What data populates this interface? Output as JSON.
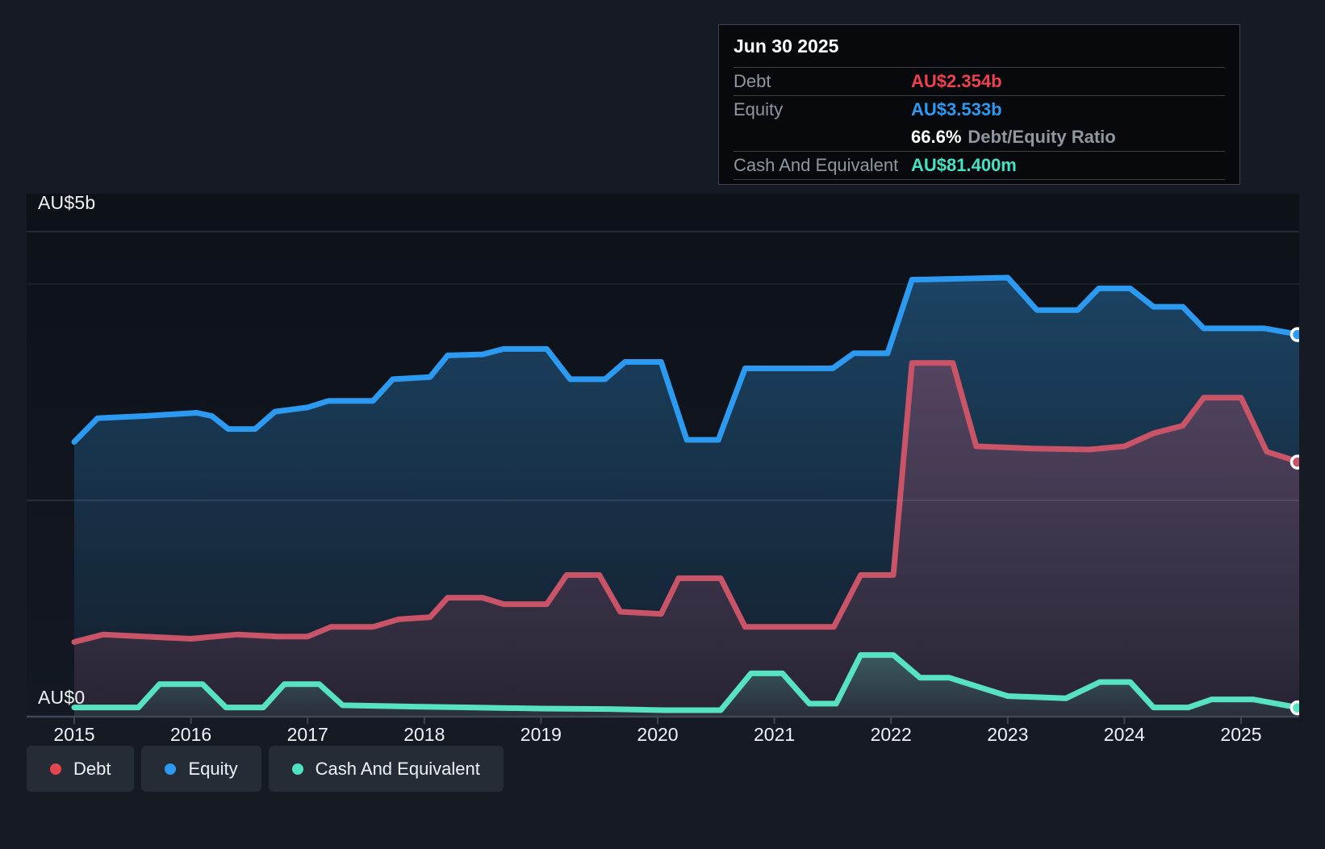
{
  "tooltip": {
    "date": "Jun 30 2025",
    "debt": {
      "label": "Debt",
      "value": "AU$2.354b",
      "color": "#ee4150"
    },
    "equity": {
      "label": "Equity",
      "value": "AU$3.533b",
      "color": "#2b9af0"
    },
    "ratio": {
      "value": "66.6%",
      "label": "Debt/Equity Ratio"
    },
    "cash": {
      "label": "Cash And Equivalent",
      "value": "AU$81.400m",
      "color": "#47e2c1"
    }
  },
  "y_axis": {
    "top_label": "AU$5b",
    "bottom_label": "AU$0"
  },
  "x_axis": {
    "years": [
      "2015",
      "2016",
      "2017",
      "2018",
      "2019",
      "2020",
      "2021",
      "2022",
      "2023",
      "2024",
      "2025"
    ]
  },
  "legend": {
    "items": [
      {
        "label": "Debt",
        "color": "#e4464f"
      },
      {
        "label": "Equity",
        "color": "#2b9af0"
      },
      {
        "label": "Cash And Equivalent",
        "color": "#4fe2c2"
      }
    ]
  },
  "chart_data": {
    "type": "area",
    "unit": "AU$ billions",
    "x_range": [
      2015,
      2025.5
    ],
    "ylim": [
      0,
      5
    ],
    "y_gridlines_b": [
      0,
      2,
      4
    ],
    "y_axis_labels_shown": [
      "AU$5b",
      "AU$0"
    ],
    "x_tick_labels": [
      "2015",
      "2016",
      "2017",
      "2018",
      "2019",
      "2020",
      "2021",
      "2022",
      "2023",
      "2024",
      "2025"
    ],
    "legend_position": "bottom-left",
    "last_point_date": "Jun 30 2025",
    "series": [
      {
        "name": "Equity",
        "color": "#2b9af0",
        "fill_top": "rgba(43,125,186,0.46)",
        "fill_bottom": "rgba(43,125,186,0.06)",
        "points": [
          [
            2015.0,
            2.54
          ],
          [
            2015.2,
            2.76
          ],
          [
            2015.6,
            2.78
          ],
          [
            2016.05,
            2.81
          ],
          [
            2016.18,
            2.78
          ],
          [
            2016.32,
            2.66
          ],
          [
            2016.55,
            2.66
          ],
          [
            2016.72,
            2.82
          ],
          [
            2017.0,
            2.86
          ],
          [
            2017.18,
            2.92
          ],
          [
            2017.56,
            2.92
          ],
          [
            2017.73,
            3.12
          ],
          [
            2018.05,
            3.14
          ],
          [
            2018.2,
            3.34
          ],
          [
            2018.5,
            3.35
          ],
          [
            2018.68,
            3.4
          ],
          [
            2019.05,
            3.4
          ],
          [
            2019.25,
            3.12
          ],
          [
            2019.55,
            3.12
          ],
          [
            2019.72,
            3.28
          ],
          [
            2020.03,
            3.28
          ],
          [
            2020.25,
            2.56
          ],
          [
            2020.52,
            2.56
          ],
          [
            2020.75,
            3.22
          ],
          [
            2021.5,
            3.22
          ],
          [
            2021.68,
            3.36
          ],
          [
            2021.97,
            3.36
          ],
          [
            2022.18,
            4.04
          ],
          [
            2023.0,
            4.06
          ],
          [
            2023.25,
            3.76
          ],
          [
            2023.6,
            3.76
          ],
          [
            2023.78,
            3.96
          ],
          [
            2024.05,
            3.96
          ],
          [
            2024.25,
            3.79
          ],
          [
            2024.5,
            3.79
          ],
          [
            2024.68,
            3.59
          ],
          [
            2025.2,
            3.59
          ],
          [
            2025.5,
            3.533
          ]
        ]
      },
      {
        "name": "Debt",
        "color": "#c95367",
        "fill_top": "rgba(206,86,112,0.32)",
        "fill_bottom": "rgba(206,86,112,0.10)",
        "points": [
          [
            2015.0,
            0.69
          ],
          [
            2015.25,
            0.76
          ],
          [
            2015.6,
            0.74
          ],
          [
            2016.0,
            0.72
          ],
          [
            2016.4,
            0.76
          ],
          [
            2016.75,
            0.74
          ],
          [
            2017.0,
            0.74
          ],
          [
            2017.2,
            0.83
          ],
          [
            2017.56,
            0.83
          ],
          [
            2017.78,
            0.9
          ],
          [
            2018.05,
            0.92
          ],
          [
            2018.2,
            1.1
          ],
          [
            2018.5,
            1.1
          ],
          [
            2018.68,
            1.04
          ],
          [
            2019.05,
            1.04
          ],
          [
            2019.22,
            1.31
          ],
          [
            2019.5,
            1.31
          ],
          [
            2019.68,
            0.97
          ],
          [
            2020.03,
            0.95
          ],
          [
            2020.18,
            1.28
          ],
          [
            2020.54,
            1.28
          ],
          [
            2020.75,
            0.83
          ],
          [
            2021.51,
            0.83
          ],
          [
            2021.74,
            1.31
          ],
          [
            2022.02,
            1.31
          ],
          [
            2022.18,
            3.27
          ],
          [
            2022.53,
            3.27
          ],
          [
            2022.73,
            2.5
          ],
          [
            2023.2,
            2.48
          ],
          [
            2023.7,
            2.47
          ],
          [
            2024.0,
            2.5
          ],
          [
            2024.25,
            2.62
          ],
          [
            2024.5,
            2.69
          ],
          [
            2024.68,
            2.95
          ],
          [
            2025.0,
            2.95
          ],
          [
            2025.22,
            2.45
          ],
          [
            2025.5,
            2.354
          ]
        ]
      },
      {
        "name": "Cash And Equivalent",
        "color": "#57e2c2",
        "fill_top": "rgba(86,224,196,0.26)",
        "fill_bottom": "rgba(86,224,196,0.06)",
        "points": [
          [
            2015.0,
            0.085
          ],
          [
            2015.55,
            0.085
          ],
          [
            2015.73,
            0.3
          ],
          [
            2016.1,
            0.3
          ],
          [
            2016.3,
            0.085
          ],
          [
            2016.62,
            0.085
          ],
          [
            2016.8,
            0.3
          ],
          [
            2017.1,
            0.3
          ],
          [
            2017.3,
            0.105
          ],
          [
            2017.8,
            0.095
          ],
          [
            2018.4,
            0.085
          ],
          [
            2019.0,
            0.075
          ],
          [
            2019.6,
            0.07
          ],
          [
            2020.05,
            0.06
          ],
          [
            2020.54,
            0.06
          ],
          [
            2020.8,
            0.4
          ],
          [
            2021.07,
            0.4
          ],
          [
            2021.3,
            0.12
          ],
          [
            2021.53,
            0.12
          ],
          [
            2021.74,
            0.57
          ],
          [
            2022.02,
            0.57
          ],
          [
            2022.25,
            0.36
          ],
          [
            2022.5,
            0.36
          ],
          [
            2023.0,
            0.19
          ],
          [
            2023.5,
            0.17
          ],
          [
            2023.79,
            0.32
          ],
          [
            2024.05,
            0.32
          ],
          [
            2024.25,
            0.085
          ],
          [
            2024.55,
            0.085
          ],
          [
            2024.75,
            0.16
          ],
          [
            2025.1,
            0.16
          ],
          [
            2025.5,
            0.0814
          ]
        ]
      }
    ]
  },
  "colors": {
    "page_bg": "#151a23",
    "plot_bg_top": "#0d1118",
    "plot_bg_bottom": "#131823",
    "gridline": "#2a303a",
    "gridline_faint": "#252b34",
    "gridline_overlay": "rgba(158,173,189,0.20)",
    "axis_line": "#3f4754",
    "tooltip_bg": "#07090d",
    "tooltip_border": "#3e444e",
    "legend_pill_bg": "#262c35"
  }
}
